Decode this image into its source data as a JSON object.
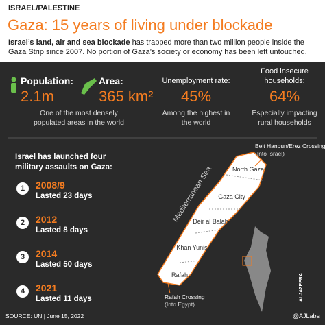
{
  "header": {
    "kicker": "ISRAEL/PALESTINE",
    "title": "Gaza: 15 years of living under blockade",
    "subtitle_bold": "Israel’s land, air and sea blockade",
    "subtitle_rest": " has trapped more than two million people inside the Gaza Strip since 2007. No portion of Gaza’s society or economy has been left untouched."
  },
  "stats": [
    {
      "label": "Population:",
      "value": "2.1m",
      "note": "One of the most densely populated areas in the world"
    },
    {
      "label": "Area:",
      "value": "365 km²",
      "note": ""
    },
    {
      "label": "Unemployment rate:",
      "value": "45%",
      "note": "Among the highest in the world"
    },
    {
      "label": "Food insecure households:",
      "value": "64%",
      "note": "Especially impacting rural households"
    }
  ],
  "assaults": {
    "intro": "Israel has launched four military assaults on Gaza:",
    "items": [
      {
        "number": "1",
        "year": "2008/9",
        "duration": "Lasted 23 days"
      },
      {
        "number": "2",
        "year": "2012",
        "duration": "Lasted 8 days"
      },
      {
        "number": "3",
        "year": "2014",
        "duration": "Lasted 50 days"
      },
      {
        "number": "4",
        "year": "2021",
        "duration": "Lasted 11 days"
      }
    ]
  },
  "map": {
    "sea": "Mediterranean Sea",
    "regions": [
      "North Gaza",
      "Gaza City",
      "Deir al Balah",
      "Khan Yunis",
      "Rafah"
    ],
    "crossings": [
      {
        "name": "Beit Hanoun/Erez Crossing",
        "note": "(Into Israel)"
      },
      {
        "name": "Rafah Crossing",
        "note": "(Into Egypt)"
      }
    ]
  },
  "footer": {
    "source": "SOURCE: UN | June 15, 2022",
    "handle": "@AJLabs",
    "logo": "ALJAZEERA"
  }
}
